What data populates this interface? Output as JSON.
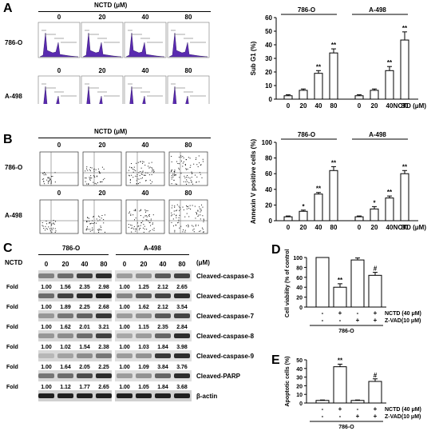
{
  "panels": {
    "A": {
      "letter": "A",
      "treatment": "NCTD (μM)",
      "doses": [
        "0",
        "20",
        "40",
        "80"
      ],
      "rows": [
        "786-O",
        "A-498"
      ]
    },
    "B": {
      "letter": "B",
      "treatment": "NCTD (μM)",
      "doses": [
        "0",
        "20",
        "40",
        "80"
      ],
      "rows": [
        "786-O",
        "A-498"
      ]
    },
    "C": {
      "letter": "C",
      "group_786": "786-O",
      "group_a498": "A-498",
      "ncTD_label": "NCTD",
      "unit": "(μM)",
      "doses": [
        "0",
        "20",
        "40",
        "80"
      ],
      "fold_label": "Fold",
      "blots": [
        {
          "name": "Cleaved-caspase-3",
          "fold_786": [
            "1.00",
            "1.56",
            "2.35",
            "2.98"
          ],
          "fold_a498": [
            "1.00",
            "1.25",
            "2.12",
            "2.65"
          ]
        },
        {
          "name": "Cleaved-caspase-6",
          "fold_786": [
            "1.00",
            "1.89",
            "2.25",
            "2.68"
          ],
          "fold_a498": [
            "1.00",
            "1.62",
            "2.12",
            "3.54"
          ]
        },
        {
          "name": "Cleaved-caspase-7",
          "fold_786": [
            "1.00",
            "1.62",
            "2.01",
            "3.21"
          ],
          "fold_a498": [
            "1.00",
            "1.15",
            "2.35",
            "2.84"
          ]
        },
        {
          "name": "Cleaved-caspase-8",
          "fold_786": [
            "1.00",
            "1.02",
            "1.54",
            "2.38"
          ],
          "fold_a498": [
            "1.00",
            "1.03",
            "1.84",
            "3.98"
          ]
        },
        {
          "name": "Cleaved-caspase-9",
          "fold_786": [
            "1.00",
            "1.64",
            "2.05",
            "2.25"
          ],
          "fold_a498": [
            "1.00",
            "1.09",
            "3.84",
            "3.76"
          ]
        },
        {
          "name": "Cleaved-PARP",
          "fold_786": [
            "1.00",
            "1.12",
            "1.77",
            "2.65"
          ],
          "fold_a498": [
            "1.00",
            "1.05",
            "1.84",
            "3.68"
          ]
        }
      ],
      "loading": "β-actin"
    },
    "D": {
      "letter": "D"
    },
    "E": {
      "letter": "E"
    }
  },
  "chart_data": [
    {
      "id": "A-right",
      "type": "bar",
      "groups": [
        "786-O",
        "A-498"
      ],
      "categories": [
        "0",
        "20",
        "40",
        "80",
        "0",
        "20",
        "40",
        "80"
      ],
      "values": [
        2.5,
        6.5,
        19,
        34,
        2.5,
        6.5,
        21,
        43.5
      ],
      "errors": [
        0.8,
        1,
        2,
        3,
        0.8,
        1,
        3,
        6
      ],
      "sig": [
        "",
        "",
        "**",
        "**",
        "",
        "",
        "**",
        "**"
      ],
      "ylabel": "Sub G1 (%)",
      "xlabel": "NCTD (μM)",
      "ylim": [
        0,
        60
      ],
      "yticks": [
        "0",
        "10",
        "20",
        "30",
        "40",
        "50",
        "60"
      ]
    },
    {
      "id": "B-right",
      "type": "bar",
      "groups": [
        "786-O",
        "A-498"
      ],
      "categories": [
        "0",
        "20",
        "40",
        "80",
        "0",
        "20",
        "40",
        "80"
      ],
      "values": [
        5,
        12,
        34,
        64,
        5,
        15,
        29,
        60
      ],
      "errors": [
        1,
        1.5,
        2,
        5,
        1,
        3,
        2.5,
        4
      ],
      "sig": [
        "",
        "*",
        "**",
        "**",
        "",
        "*",
        "**",
        "**"
      ],
      "ylabel": "Annexin V positive cells (%)",
      "xlabel": "NCTD (μM)",
      "ylim": [
        0,
        100
      ],
      "yticks": [
        "0",
        "20",
        "40",
        "60",
        "80",
        "100"
      ]
    },
    {
      "id": "D",
      "type": "bar",
      "values": [
        100,
        40,
        95,
        64
      ],
      "errors": [
        0,
        7,
        4,
        6
      ],
      "sig": [
        "",
        "**",
        "",
        "#"
      ],
      "ylabel": "Cell viability (% of control)",
      "ylim": [
        0,
        100
      ],
      "yticks": [
        "0",
        "20",
        "40",
        "60",
        "80",
        "100"
      ],
      "conditions": [
        {
          "label": "NCTD (40 μM)",
          "signs": [
            "-",
            "+",
            "-",
            "+"
          ]
        },
        {
          "label": "Z-VAD(10 μM)",
          "signs": [
            "-",
            "-",
            "+",
            "+"
          ]
        }
      ],
      "cell_line": "786-O"
    },
    {
      "id": "E",
      "type": "bar",
      "values": [
        3,
        42,
        3,
        25
      ],
      "errors": [
        0.5,
        3,
        0.5,
        3
      ],
      "sig": [
        "",
        "**",
        "",
        "#"
      ],
      "ylabel": "Apoptotic cells (%)",
      "ylim": [
        0,
        50
      ],
      "yticks": [
        "0",
        "10",
        "20",
        "30",
        "40",
        "50"
      ],
      "conditions": [
        {
          "label": "NCTD (40 μM)",
          "signs": [
            "-",
            "+",
            "-",
            "+"
          ]
        },
        {
          "label": "Z-VAD(10 μM)",
          "signs": [
            "-",
            "-",
            "+",
            "+"
          ]
        }
      ],
      "cell_line": "786-O"
    }
  ]
}
